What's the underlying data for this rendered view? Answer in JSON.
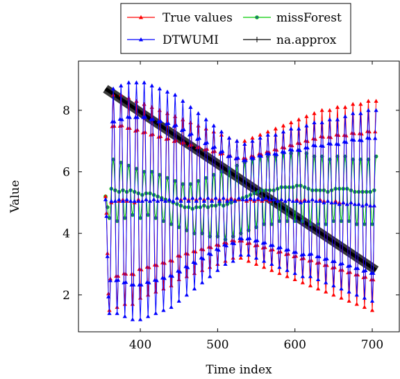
{
  "chart_data": {
    "type": "line",
    "title": "",
    "xlabel": "Time index",
    "ylabel": "Value",
    "xlim": [
      320,
      735
    ],
    "ylim": [
      0.8,
      9.6
    ],
    "xticks": [
      400,
      500,
      600,
      700
    ],
    "yticks": [
      2,
      4,
      6,
      8
    ],
    "grid": false,
    "legend_position": "top-center",
    "series": [
      {
        "name": "True values",
        "color": "#ff0000",
        "marker": "triangle",
        "period": 10,
        "samples": [
          [
            355,
            5.2
          ],
          [
            360,
            1.5
          ],
          [
            365,
            8.5
          ],
          [
            370,
            1.6
          ],
          [
            375,
            8.5
          ],
          [
            380,
            1.7
          ],
          [
            385,
            8.4
          ],
          [
            390,
            1.7
          ],
          [
            395,
            8.3
          ],
          [
            400,
            1.9
          ],
          [
            405,
            8.2
          ],
          [
            410,
            2.0
          ],
          [
            415,
            8.1
          ],
          [
            420,
            2.1
          ],
          [
            425,
            8.0
          ],
          [
            430,
            2.2
          ],
          [
            435,
            7.9
          ],
          [
            440,
            2.3
          ],
          [
            445,
            7.8
          ],
          [
            450,
            2.5
          ],
          [
            455,
            7.7
          ],
          [
            460,
            2.6
          ],
          [
            465,
            7.6
          ],
          [
            470,
            2.7
          ],
          [
            475,
            7.5
          ],
          [
            480,
            2.8
          ],
          [
            485,
            7.4
          ],
          [
            490,
            2.9
          ],
          [
            495,
            7.3
          ],
          [
            500,
            3.0
          ],
          [
            505,
            7.2
          ],
          [
            510,
            3.1
          ],
          [
            515,
            7.1
          ],
          [
            520,
            3.2
          ],
          [
            525,
            7.0
          ],
          [
            530,
            3.2
          ],
          [
            535,
            7.0
          ],
          [
            540,
            3.1
          ],
          [
            545,
            7.1
          ],
          [
            550,
            3.0
          ],
          [
            555,
            7.2
          ],
          [
            560,
            2.9
          ],
          [
            565,
            7.3
          ],
          [
            570,
            2.8
          ],
          [
            575,
            7.4
          ],
          [
            580,
            2.7
          ],
          [
            585,
            7.5
          ],
          [
            590,
            2.6
          ],
          [
            595,
            7.6
          ],
          [
            600,
            2.5
          ],
          [
            605,
            7.7
          ],
          [
            610,
            2.4
          ],
          [
            615,
            7.8
          ],
          [
            620,
            2.3
          ],
          [
            625,
            7.9
          ],
          [
            630,
            2.2
          ],
          [
            635,
            8.0
          ],
          [
            640,
            2.1
          ],
          [
            645,
            8.0
          ],
          [
            650,
            2.0
          ],
          [
            655,
            8.1
          ],
          [
            660,
            1.9
          ],
          [
            665,
            8.1
          ],
          [
            670,
            1.8
          ],
          [
            675,
            8.2
          ],
          [
            680,
            1.7
          ],
          [
            685,
            8.2
          ],
          [
            690,
            1.6
          ],
          [
            695,
            8.3
          ],
          [
            700,
            1.5
          ],
          [
            705,
            8.3
          ]
        ]
      },
      {
        "name": "missForest",
        "color": "#00cc00",
        "marker": "circle",
        "period": 10,
        "samples": [
          [
            355,
            5.2
          ],
          [
            360,
            4.5
          ],
          [
            365,
            6.4
          ],
          [
            370,
            4.4
          ],
          [
            375,
            6.3
          ],
          [
            380,
            4.5
          ],
          [
            385,
            6.2
          ],
          [
            390,
            4.6
          ],
          [
            395,
            6.1
          ],
          [
            400,
            4.5
          ],
          [
            405,
            6.0
          ],
          [
            410,
            4.6
          ],
          [
            415,
            6.0
          ],
          [
            420,
            4.5
          ],
          [
            425,
            5.9
          ],
          [
            430,
            4.4
          ],
          [
            435,
            5.8
          ],
          [
            440,
            4.3
          ],
          [
            445,
            5.7
          ],
          [
            450,
            4.2
          ],
          [
            455,
            5.6
          ],
          [
            460,
            4.1
          ],
          [
            465,
            5.6
          ],
          [
            470,
            4.0
          ],
          [
            475,
            5.7
          ],
          [
            480,
            4.0
          ],
          [
            485,
            5.8
          ],
          [
            490,
            3.9
          ],
          [
            495,
            5.9
          ],
          [
            500,
            3.9
          ],
          [
            505,
            6.0
          ],
          [
            510,
            3.8
          ],
          [
            515,
            6.1
          ],
          [
            520,
            3.9
          ],
          [
            525,
            6.2
          ],
          [
            530,
            4.0
          ],
          [
            535,
            6.3
          ],
          [
            540,
            4.1
          ],
          [
            545,
            6.4
          ],
          [
            550,
            4.2
          ],
          [
            555,
            6.5
          ],
          [
            560,
            4.3
          ],
          [
            565,
            6.5
          ],
          [
            570,
            4.3
          ],
          [
            575,
            6.5
          ],
          [
            580,
            4.4
          ],
          [
            585,
            6.6
          ],
          [
            590,
            4.4
          ],
          [
            595,
            6.6
          ],
          [
            600,
            4.4
          ],
          [
            605,
            6.7
          ],
          [
            610,
            4.4
          ],
          [
            615,
            6.6
          ],
          [
            620,
            4.3
          ],
          [
            625,
            6.5
          ],
          [
            630,
            4.3
          ],
          [
            635,
            6.5
          ],
          [
            640,
            4.3
          ],
          [
            645,
            6.4
          ],
          [
            650,
            4.4
          ],
          [
            655,
            6.5
          ],
          [
            660,
            4.4
          ],
          [
            665,
            6.5
          ],
          [
            670,
            4.4
          ],
          [
            675,
            6.4
          ],
          [
            680,
            4.3
          ],
          [
            685,
            6.4
          ],
          [
            690,
            4.3
          ],
          [
            695,
            6.4
          ],
          [
            700,
            4.3
          ],
          [
            705,
            6.5
          ]
        ]
      },
      {
        "name": "DTWUMI",
        "color": "#0000ff",
        "marker": "triangle",
        "period": 10,
        "samples": [
          [
            355,
            5.1
          ],
          [
            360,
            1.4
          ],
          [
            365,
            8.7
          ],
          [
            370,
            1.4
          ],
          [
            375,
            8.8
          ],
          [
            380,
            1.3
          ],
          [
            385,
            8.9
          ],
          [
            390,
            1.2
          ],
          [
            395,
            8.9
          ],
          [
            400,
            1.2
          ],
          [
            405,
            8.9
          ],
          [
            410,
            1.3
          ],
          [
            415,
            8.8
          ],
          [
            420,
            1.4
          ],
          [
            425,
            8.7
          ],
          [
            430,
            1.5
          ],
          [
            435,
            8.6
          ],
          [
            440,
            1.6
          ],
          [
            445,
            8.5
          ],
          [
            450,
            1.8
          ],
          [
            455,
            8.3
          ],
          [
            460,
            2.0
          ],
          [
            465,
            8.1
          ],
          [
            470,
            2.2
          ],
          [
            475,
            7.9
          ],
          [
            480,
            2.4
          ],
          [
            485,
            7.7
          ],
          [
            490,
            2.6
          ],
          [
            495,
            7.5
          ],
          [
            500,
            2.8
          ],
          [
            505,
            7.3
          ],
          [
            510,
            3.0
          ],
          [
            515,
            7.1
          ],
          [
            520,
            3.1
          ],
          [
            525,
            7.0
          ],
          [
            530,
            3.3
          ],
          [
            535,
            6.9
          ],
          [
            540,
            3.3
          ],
          [
            545,
            7.0
          ],
          [
            550,
            3.2
          ],
          [
            555,
            7.1
          ],
          [
            560,
            3.1
          ],
          [
            565,
            7.2
          ],
          [
            570,
            3.0
          ],
          [
            575,
            7.2
          ],
          [
            580,
            2.9
          ],
          [
            585,
            7.3
          ],
          [
            590,
            2.8
          ],
          [
            595,
            7.4
          ],
          [
            600,
            2.7
          ],
          [
            605,
            7.4
          ],
          [
            610,
            2.6
          ],
          [
            615,
            7.5
          ],
          [
            620,
            2.6
          ],
          [
            625,
            7.6
          ],
          [
            630,
            2.5
          ],
          [
            635,
            7.6
          ],
          [
            640,
            2.4
          ],
          [
            645,
            7.7
          ],
          [
            650,
            2.3
          ],
          [
            655,
            7.7
          ],
          [
            660,
            2.2
          ],
          [
            665,
            7.8
          ],
          [
            670,
            2.1
          ],
          [
            675,
            7.9
          ],
          [
            680,
            2.0
          ],
          [
            685,
            7.9
          ],
          [
            690,
            1.9
          ],
          [
            695,
            8.0
          ],
          [
            700,
            1.8
          ],
          [
            705,
            8.0
          ]
        ]
      },
      {
        "name": "na.approx",
        "color": "#000000",
        "marker": "plus",
        "x": [
          355,
          705
        ],
        "y": [
          8.7,
          2.8
        ]
      }
    ]
  }
}
